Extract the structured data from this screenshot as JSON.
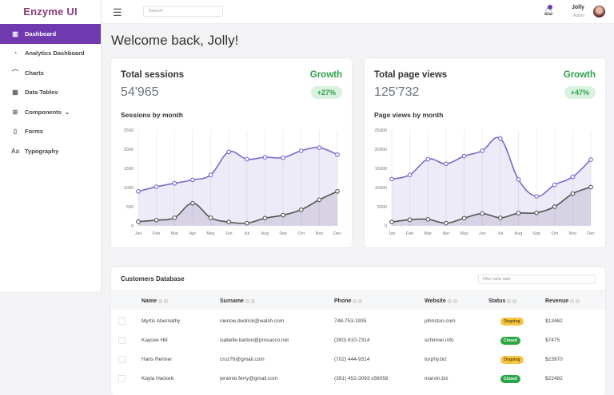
{
  "app": {
    "logo": "Enzyme UI"
  },
  "sidebar": {
    "items": [
      {
        "label": "Dashboard",
        "icon": "bar-chart-icon",
        "glyph": "▥",
        "active": true
      },
      {
        "label": "Analytics Dashboard",
        "icon": "pie-chart-icon",
        "glyph": "◔"
      },
      {
        "label": "Charts",
        "icon": "line-chart-icon",
        "glyph": "⌒"
      },
      {
        "label": "Data Tables",
        "icon": "table-icon",
        "glyph": "▦"
      },
      {
        "label": "Components",
        "icon": "grid-icon",
        "glyph": "⊞",
        "chevron": "⌄"
      },
      {
        "label": "Forms",
        "icon": "file-icon",
        "glyph": "▯"
      },
      {
        "label": "Typography",
        "icon": "typography-icon",
        "glyph": "Aa"
      }
    ]
  },
  "header": {
    "search_placeholder": "Search",
    "user_name": "Jolly",
    "user_role": "Admin"
  },
  "welcome": "Welcome back, Jolly!",
  "cards": [
    {
      "title": "Total sessions",
      "value": "54'965",
      "growth_label": "Growth",
      "growth": "+27%",
      "subtitle": "Sessions by month"
    },
    {
      "title": "Total page views",
      "value": "125'732",
      "growth_label": "Growth",
      "growth": "+47%",
      "subtitle": "Page views by month"
    }
  ],
  "chart_data": [
    {
      "type": "area",
      "categories": [
        "Jan",
        "Feb",
        "Mar",
        "Apr",
        "May",
        "Jun",
        "Jul",
        "Aug",
        "Sep",
        "Oct",
        "Nov",
        "Dec"
      ],
      "ylim": [
        0,
        2500
      ],
      "yticks": [
        "0",
        "500",
        "1000",
        "1500",
        "2000",
        "2500"
      ],
      "grid": true,
      "series": [
        {
          "values": [
            900,
            1020,
            1110,
            1200,
            1330,
            1930,
            1740,
            1790,
            1780,
            1960,
            2040,
            1860
          ],
          "color": "#7b68cc"
        },
        {
          "values": [
            110,
            150,
            210,
            590,
            210,
            100,
            70,
            200,
            280,
            420,
            680,
            900
          ],
          "color": "#555555"
        }
      ]
    },
    {
      "type": "area",
      "categories": [
        "Jan",
        "Feb",
        "Mar",
        "Apr",
        "May",
        "Jun",
        "Jul",
        "Aug",
        "Sep",
        "Oct",
        "Nov",
        "Dec"
      ],
      "ylim": [
        0,
        25000
      ],
      "yticks": [
        "0",
        "5000",
        "10000",
        "15000",
        "20000",
        "25000"
      ],
      "grid": true,
      "series": [
        {
          "values": [
            12200,
            13300,
            17400,
            16200,
            18200,
            19600,
            22800,
            12100,
            7700,
            10700,
            12800,
            17300
          ],
          "color": "#7b68cc"
        },
        {
          "values": [
            1000,
            1600,
            1700,
            700,
            2000,
            3200,
            2100,
            3300,
            3400,
            5000,
            8400,
            10100
          ],
          "color": "#555555"
        }
      ]
    }
  ],
  "table": {
    "title": "Customers Database",
    "filter_placeholder": "Filter table data",
    "columns": [
      "Name",
      "Surname",
      "Phone",
      "Website",
      "Status",
      "Revenue"
    ],
    "rows": [
      {
        "name": "Myrtis Abernathy",
        "surname": "nienow.dedrick@walsh.com",
        "phone": "748-753-1935",
        "website": "johnston.com",
        "status": "Ongoing",
        "revenue": "$13462"
      },
      {
        "name": "Kaycee Hill",
        "surname": "isabelle.barton@prosacco.net",
        "phone": "(350) 610-7314",
        "website": "schinner.info",
        "status": "Closed",
        "revenue": "$7475"
      },
      {
        "name": "Hans Renner",
        "surname": "cruz76@gmail.com",
        "phone": "(702) 444-9314",
        "website": "torphy.biz",
        "status": "Ongoing",
        "revenue": "$23970"
      },
      {
        "name": "Kayla Hackett",
        "surname": "jeramie.ferry@gmail.com",
        "phone": "(391) 452-3093 x56058",
        "website": "marvin.biz",
        "status": "Closed",
        "revenue": "$22482"
      }
    ]
  },
  "colors": {
    "accent": "#6f3ab0",
    "ongoing": "#f5c542",
    "closed": "#28a745"
  }
}
